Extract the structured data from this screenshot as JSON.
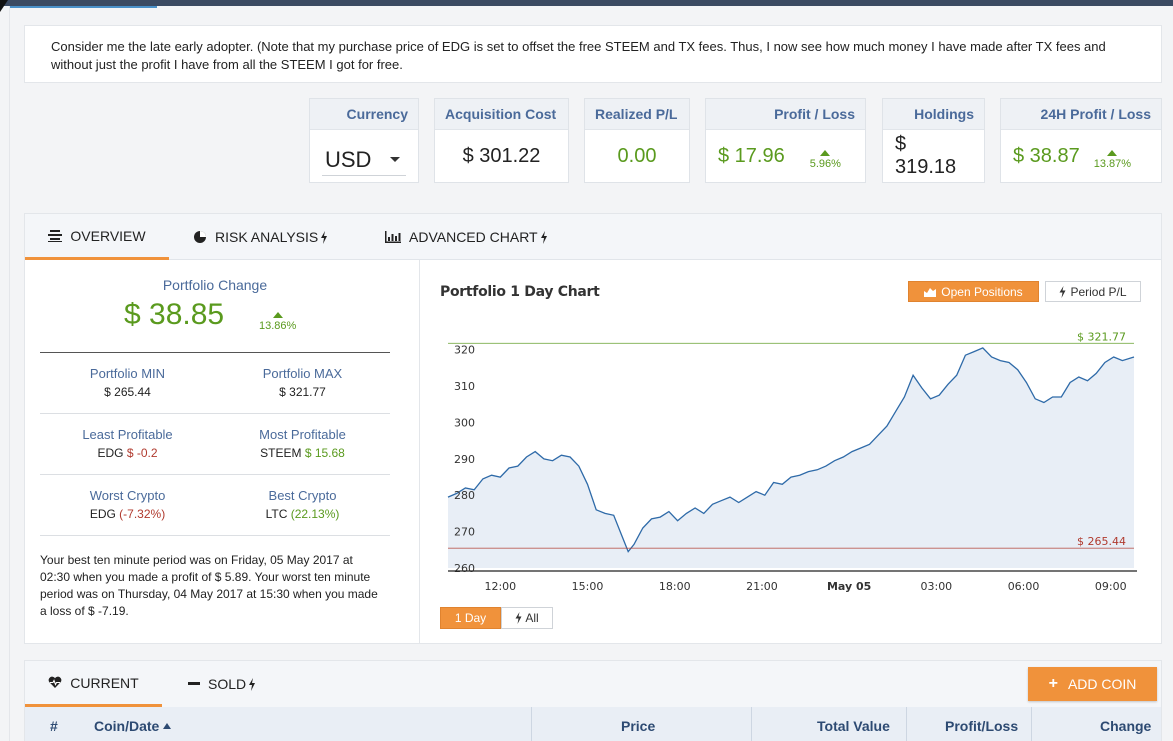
{
  "note": {
    "text": "Consider me the late early adopter. (Note that my purchase price of EDG is set to offset the free STEEM and TX fees. Thus, I now see how much money I have made after TX fees and without just the profit I have from all the STEEM I got for free."
  },
  "stats": {
    "currency": {
      "label": "Currency",
      "value": "USD"
    },
    "acquisition": {
      "label": "Acquisition Cost",
      "value": "$ 301.22"
    },
    "realized": {
      "label": "Realized P/L",
      "value": "0.00"
    },
    "profit_loss": {
      "label": "Profit / Loss",
      "value": "$ 17.96",
      "pct": "5.96%"
    },
    "holdings": {
      "label": "Holdings",
      "value": "$ 319.18"
    },
    "h24": {
      "label": "24H Profit / Loss",
      "value": "$ 38.87",
      "pct": "13.87%"
    }
  },
  "tabs": {
    "overview": "OVERVIEW",
    "risk": "RISK ANALYSIS",
    "advanced": "ADVANCED CHART"
  },
  "overview": {
    "change_title": "Portfolio Change",
    "change_value": "$ 38.85",
    "change_pct": "13.86%",
    "min_label": "Portfolio MIN",
    "min_value": "$ 265.44",
    "max_label": "Portfolio MAX",
    "max_value": "$ 321.77",
    "least_label": "Least Profitable",
    "least_coin": "EDG",
    "least_value": "$ -0.2",
    "most_label": "Most Profitable",
    "most_coin": "STEEM",
    "most_value": "$ 15.68",
    "worst_label": "Worst Crypto",
    "worst_coin": "EDG",
    "worst_value": "(-7.32%)",
    "best_label": "Best Crypto",
    "best_coin": "LTC",
    "best_value": "(22.13%)",
    "summary": "Your best ten minute period was on Friday, 05 May 2017 at 02:30 when you made a profit of $ 5.89. Your worst ten minute period was on Thursday, 04 May 2017 at 15:30 when you made a loss of $ -7.19."
  },
  "chart": {
    "open_positions": "Open Positions",
    "period_pl": "Period P/L",
    "range_1day": "1 Day",
    "range_all": "All"
  },
  "chart_data": {
    "type": "area",
    "title": "Portfolio 1 Day Chart",
    "xlabel": "",
    "ylabel": "",
    "ylim": [
      260,
      323.5
    ],
    "yticks": [
      260,
      270,
      280,
      290,
      300,
      310,
      320
    ],
    "xticks": [
      "12:00",
      "15:00",
      "18:00",
      "21:00",
      "May 05",
      "03:00",
      "06:00",
      "09:00"
    ],
    "xlim": [
      10.2,
      33.8
    ],
    "tick_hours": [
      12,
      15,
      18,
      21,
      24,
      27,
      30,
      33
    ],
    "max_line": {
      "value": 321.77,
      "label": "$ 321.77",
      "color": "#5a9a1e"
    },
    "min_line": {
      "value": 265.44,
      "label": "$ 265.44",
      "color": "#b03a2e"
    },
    "colors": {
      "line": "#2e6aa8",
      "fill": "#e8eef6"
    },
    "x": [
      10.2,
      10.5,
      10.8,
      11.1,
      11.4,
      11.7,
      12.0,
      12.3,
      12.6,
      12.9,
      13.2,
      13.5,
      13.8,
      14.1,
      14.4,
      14.7,
      15.0,
      15.3,
      15.6,
      15.9,
      16.2,
      16.4,
      16.6,
      16.9,
      17.2,
      17.5,
      17.8,
      18.1,
      18.4,
      18.7,
      19.0,
      19.3,
      19.6,
      19.9,
      20.2,
      20.5,
      20.8,
      21.1,
      21.4,
      21.7,
      22.0,
      22.3,
      22.6,
      22.9,
      23.2,
      23.5,
      23.8,
      24.1,
      24.4,
      24.7,
      25.0,
      25.3,
      25.6,
      25.9,
      26.2,
      26.5,
      26.8,
      27.1,
      27.4,
      27.7,
      28.0,
      28.3,
      28.6,
      28.9,
      29.2,
      29.5,
      29.8,
      30.1,
      30.4,
      30.7,
      31.0,
      31.3,
      31.6,
      31.9,
      32.2,
      32.5,
      32.8,
      33.1,
      33.4,
      33.8
    ],
    "values": [
      279.5,
      280.5,
      282.0,
      281.5,
      284.5,
      285.5,
      285.0,
      287.5,
      288.0,
      290.5,
      292.0,
      290.0,
      289.5,
      291.0,
      290.5,
      288.0,
      283.0,
      276.0,
      275.0,
      274.5,
      268.5,
      264.5,
      266.5,
      271.0,
      273.5,
      274.0,
      275.5,
      273.0,
      275.0,
      276.5,
      275.0,
      277.5,
      278.5,
      279.5,
      278.0,
      279.5,
      281.0,
      280.0,
      283.5,
      283.0,
      285.0,
      285.5,
      286.5,
      287.0,
      288.0,
      289.5,
      290.5,
      292.0,
      293.0,
      294.0,
      296.5,
      299.0,
      303.0,
      307.0,
      313.0,
      309.5,
      306.5,
      307.5,
      310.5,
      313.0,
      318.5,
      319.5,
      320.5,
      318.0,
      317.0,
      316.5,
      314.5,
      311.0,
      306.5,
      305.5,
      307.0,
      307.0,
      311.0,
      312.5,
      311.5,
      313.5,
      316.5,
      318.0,
      317.0,
      318.0
    ]
  },
  "bottom": {
    "current": "CURRENT",
    "sold": "SOLD",
    "add_coin": "ADD COIN",
    "columns": [
      "#",
      "Coin/Date",
      "Price",
      "Total Value",
      "Profit/Loss",
      "Change"
    ]
  }
}
